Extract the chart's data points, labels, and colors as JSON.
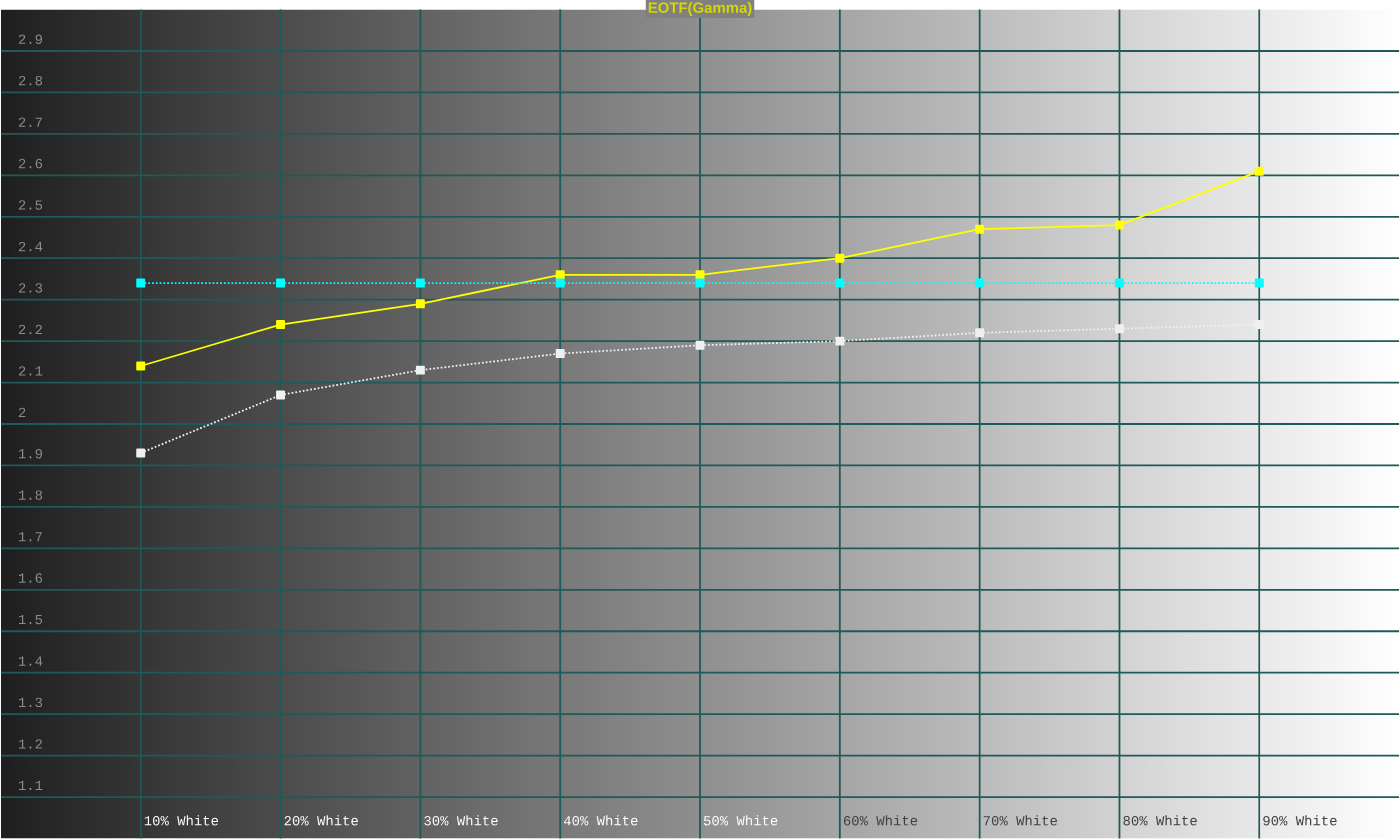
{
  "chart_data": {
    "type": "line",
    "title": "EOTF(Gamma)",
    "categories": [
      "10% White",
      "20% White",
      "30% White",
      "40% White",
      "50% White",
      "60% White",
      "70% White",
      "80% White",
      "90% White"
    ],
    "series": [
      {
        "color": "#ffff00",
        "line_style": "solid",
        "values": [
          2.14,
          2.24,
          2.29,
          2.36,
          2.36,
          2.4,
          2.47,
          2.48,
          2.61
        ]
      },
      {
        "color": "#00ffff",
        "line_style": "dotted",
        "values": [
          2.34,
          2.34,
          2.34,
          2.34,
          2.34,
          2.34,
          2.34,
          2.34,
          2.34
        ]
      },
      {
        "color": "#f0f0f0",
        "line_style": "dotted",
        "values": [
          1.93,
          2.07,
          2.13,
          2.17,
          2.19,
          2.2,
          2.22,
          2.23,
          2.24
        ]
      }
    ],
    "ylim": [
      1.0,
      3.0
    ],
    "yticks": [
      1.1,
      1.2,
      1.3,
      1.4,
      1.5,
      1.6,
      1.7,
      1.8,
      1.9,
      2,
      2.1,
      2.2,
      2.3,
      2.4,
      2.5,
      2.6,
      2.7,
      2.8,
      2.9
    ],
    "grid": true,
    "marker": "square"
  }
}
